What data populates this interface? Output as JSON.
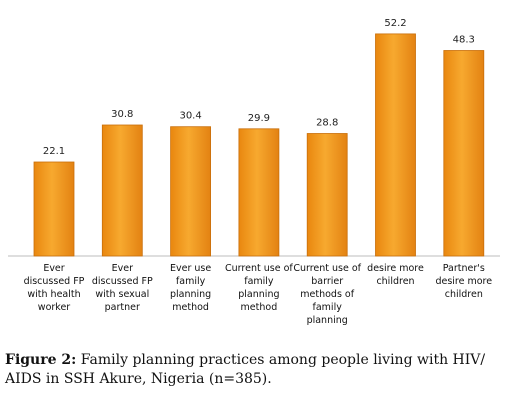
{
  "chart_data": {
    "type": "bar",
    "categories": [
      "Ever discussed FP with health worker",
      "Ever discussed FP with sexual partner",
      "Ever use family planning method",
      "Current use of family planning method",
      "Current use of barrier methods of family planning",
      "desire more children",
      "Partner's desire more children"
    ],
    "values": [
      22.1,
      30.8,
      30.4,
      29.9,
      28.8,
      52.2,
      48.3
    ],
    "value_labels": [
      "22.1",
      "30.8",
      "30.4",
      "29.9",
      "28.8",
      "52.2",
      "48.3"
    ],
    "ylim": [
      0,
      55
    ],
    "grid": false,
    "legend": "none",
    "bar_color": "#f39a1e",
    "bar_edge_color": "#c96f0a"
  },
  "caption": {
    "prefix": "Figure 2:",
    "text": " Family planning practices among people living with HIV/ AIDS in SSH Akure, Nigeria (n=385)."
  }
}
